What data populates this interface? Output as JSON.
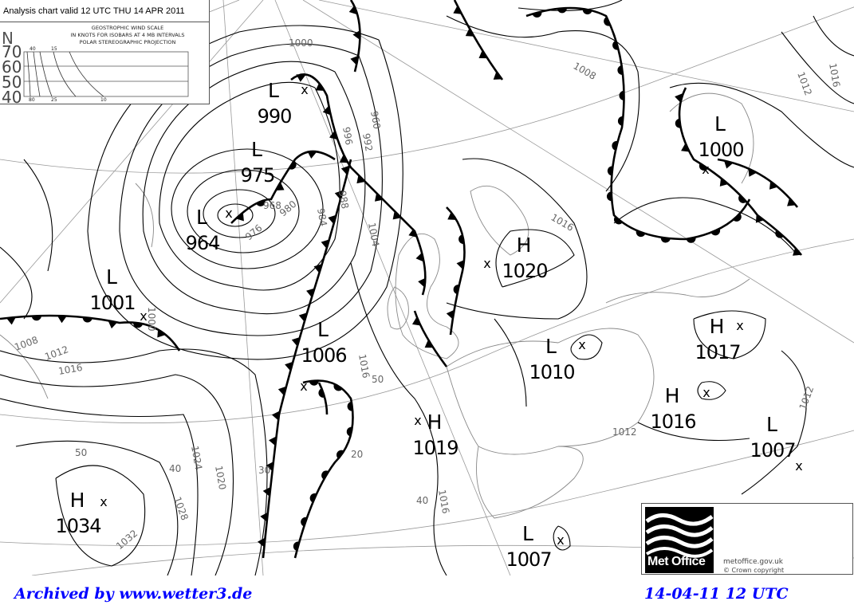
{
  "header": {
    "title": "Analysis chart valid 12 UTC THU 14 APR 2011"
  },
  "wind_scale": {
    "title": "GEOSTROPHIC WIND SCALE",
    "subtitle": "IN KNOTS FOR ISOBARS AT  4 MB INTERVALS",
    "projection": "POLAR STEREOGRAPHIC PROJECTION",
    "lat_axis_label": "N",
    "latitudes": [
      "70",
      "60",
      "50",
      "40"
    ],
    "top_speeds": [
      "40",
      "15"
    ],
    "bottom_speeds": [
      "80",
      "25",
      "10"
    ]
  },
  "pressure_centres": [
    {
      "type": "L",
      "value": "990"
    },
    {
      "type": "L",
      "value": "975"
    },
    {
      "type": "L",
      "value": "964"
    },
    {
      "type": "L",
      "value": "1001"
    },
    {
      "type": "L",
      "value": "1006"
    },
    {
      "type": "H",
      "value": "1020"
    },
    {
      "type": "L",
      "value": "1010"
    },
    {
      "type": "L",
      "value": "1000"
    },
    {
      "type": "H",
      "value": "1017"
    },
    {
      "type": "H",
      "value": "1016"
    },
    {
      "type": "L",
      "value": "1007"
    },
    {
      "type": "H",
      "value": "1019"
    },
    {
      "type": "H",
      "value": "1034"
    },
    {
      "type": "L",
      "value": "1007"
    }
  ],
  "isobar_labels": [
    "1000",
    "1000",
    "1008",
    "1012",
    "1016",
    "1024",
    "1020",
    "1028",
    "1032",
    "1016",
    "1016",
    "1012",
    "1012",
    "1008",
    "1016",
    "1012",
    "1016",
    "996",
    "992",
    "988",
    "984",
    "980",
    "976",
    "1004",
    "968",
    "960"
  ],
  "latitude_labels": [
    "50",
    "40",
    "30",
    "40",
    "50",
    "20"
  ],
  "logo": {
    "name": "Met Office",
    "website": "metoffice.gov.uk",
    "copyright": "©  Crown copyright",
    "colors": {
      "background": "#000000",
      "waves": "#ffffff"
    }
  },
  "footer": {
    "archive": "Archived by www.wetter3.de",
    "timestamp": "14-04-11 12 UTC",
    "color": "#0000ff"
  }
}
